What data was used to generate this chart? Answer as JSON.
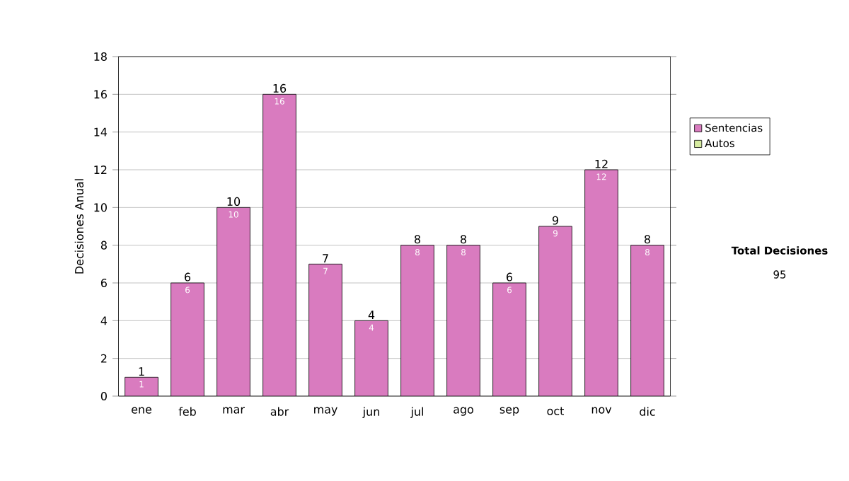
{
  "chart_data": {
    "type": "bar",
    "stacked": true,
    "ylabel": "Decisiones Anual",
    "categories": [
      "ene",
      "feb",
      "mar",
      "abr",
      "may",
      "jun",
      "jul",
      "ago",
      "sep",
      "oct",
      "nov",
      "dic"
    ],
    "series": [
      {
        "name": "Sentencias",
        "color": "#d97bbf",
        "values": [
          1,
          6,
          10,
          16,
          7,
          4,
          8,
          8,
          6,
          9,
          12,
          8
        ],
        "value_labels": [
          "1",
          "6",
          "10",
          "16",
          "7",
          "4",
          "8",
          "8",
          "6",
          "9",
          "12",
          "8"
        ]
      },
      {
        "name": "Autos",
        "color": "#d6eba0",
        "values": [
          null,
          null,
          null,
          null,
          null,
          null,
          null,
          null,
          null,
          null,
          null,
          null
        ]
      }
    ],
    "totals": [
      "1",
      "6",
      "10",
      "16",
      "7",
      "4",
      "8",
      "8",
      "6",
      "9",
      "12",
      "8"
    ],
    "ylim": [
      0,
      18
    ],
    "yticks": [
      0,
      2,
      4,
      6,
      8,
      10,
      12,
      14,
      16,
      18
    ],
    "grid": "y",
    "legend": "right",
    "annotations": [
      "**Total Decisiones**",
      "95"
    ]
  }
}
